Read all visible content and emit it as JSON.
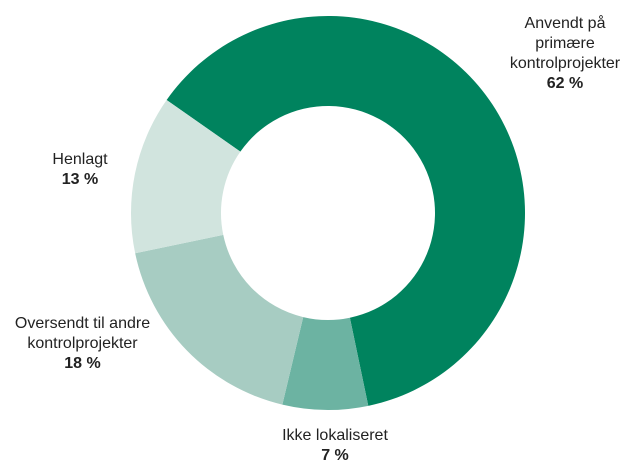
{
  "chart_data": {
    "type": "donut",
    "categories": [
      "Anvendt på primære kontrolprojekter",
      "Ikke lokaliseret",
      "Oversendt til andre kontrolprojekter",
      "Henlagt"
    ],
    "values": [
      62,
      7,
      18,
      13
    ],
    "value_labels": [
      "62 %",
      "7 %",
      "18 %",
      "13 %"
    ],
    "colors": [
      "#00835e",
      "#6cb3a2",
      "#a7ccc2",
      "#d1e4de"
    ]
  }
}
